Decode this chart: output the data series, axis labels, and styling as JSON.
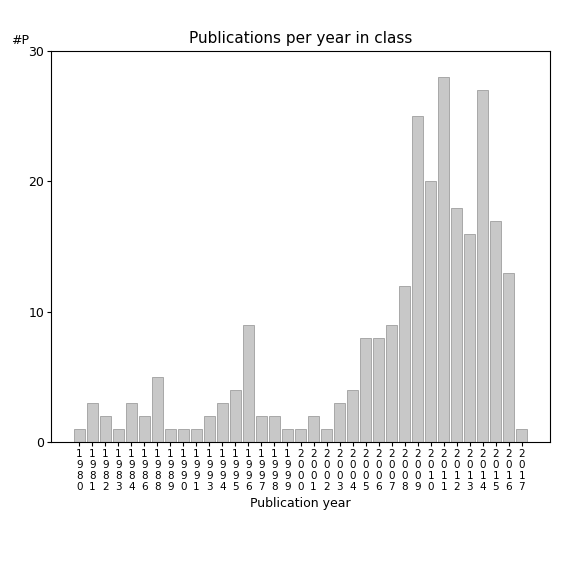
{
  "title": "Publications per year in class",
  "xlabel": "Publication year",
  "ylabel": "#P",
  "bar_color": "#c8c8c8",
  "edge_color": "#909090",
  "background_color": "#ffffff",
  "ylim": [
    0,
    30
  ],
  "yticks": [
    0,
    10,
    20,
    30
  ],
  "years": [
    "1980",
    "1981",
    "1982",
    "1983",
    "1984",
    "1986",
    "1988",
    "1989",
    "1990",
    "1991",
    "1993",
    "1994",
    "1995",
    "1996",
    "1997",
    "1998",
    "1999",
    "2000",
    "2001",
    "2002",
    "2003",
    "2004",
    "2005",
    "2006",
    "2007",
    "2008",
    "2009",
    "2010",
    "2011",
    "2012",
    "2013",
    "2014",
    "2015",
    "2016",
    "2017"
  ],
  "values": [
    1,
    3,
    2,
    1,
    3,
    2,
    5,
    1,
    1,
    1,
    2,
    3,
    4,
    9,
    2,
    2,
    1,
    1,
    2,
    1,
    3,
    4,
    8,
    8,
    9,
    12,
    25,
    20,
    28,
    18,
    16,
    27,
    17,
    13,
    1
  ],
  "tick_fontsize": 7.5,
  "title_fontsize": 11,
  "axis_label_fontsize": 9
}
